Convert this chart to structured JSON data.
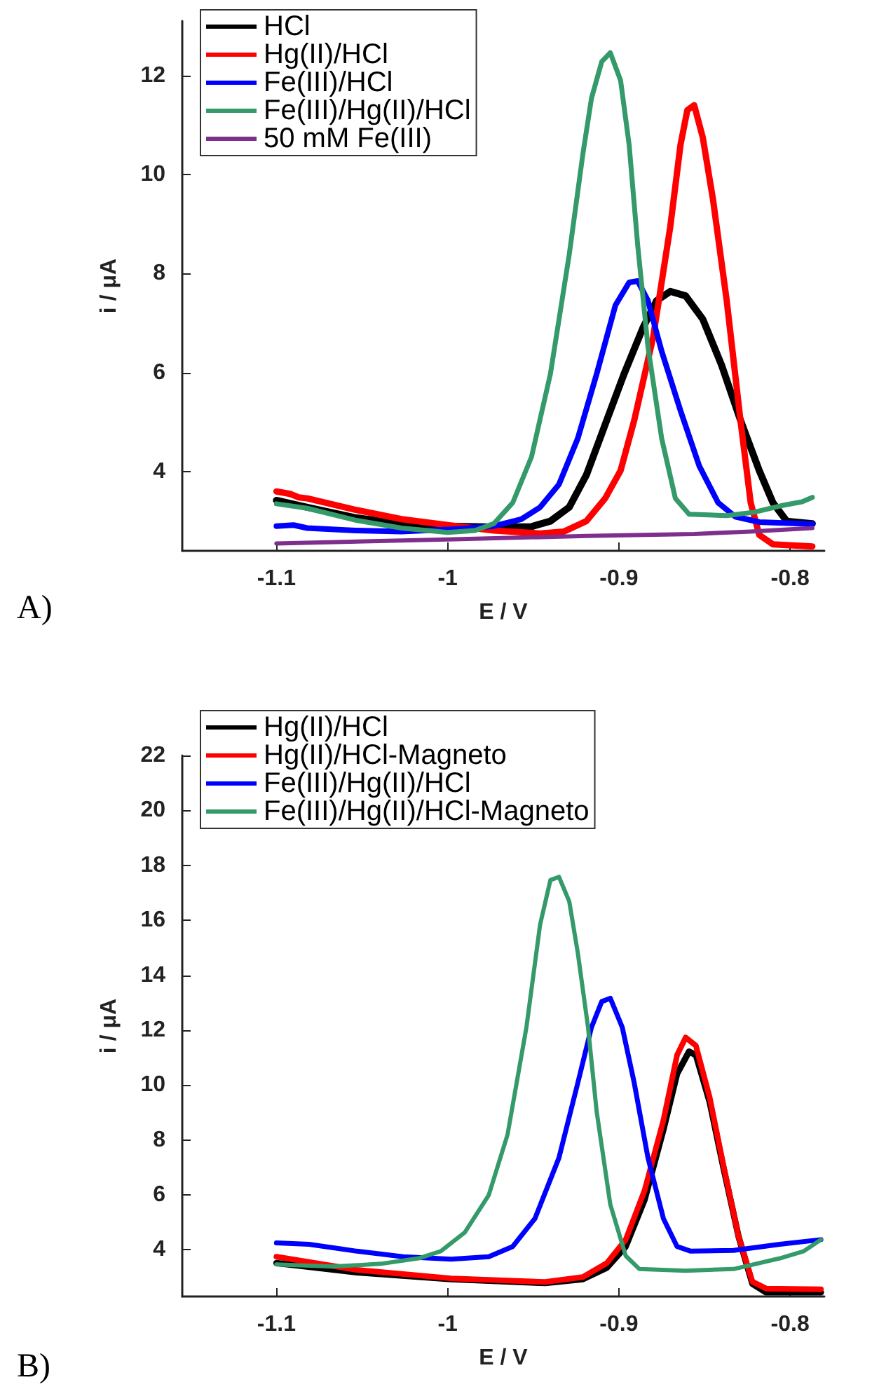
{
  "chart_data": [
    {
      "type": "line",
      "xlabel": "E / V",
      "ylabel": "i / μA",
      "annotations": [
        "A)"
      ],
      "xlim": [
        -1.155,
        -0.78
      ],
      "xticks": [
        -1.1,
        -1,
        -0.9,
        -0.8
      ],
      "ylim": [
        2.4,
        13.1
      ],
      "yticks": [
        4,
        6,
        8,
        10,
        12
      ],
      "grid": false,
      "legend": "top left",
      "marker": "none",
      "line_style": "solid",
      "series": [
        {
          "name": "HCl",
          "color": "#000000",
          "x": [
            -1.1,
            -1.082,
            -1.054,
            -1.027,
            -1.0,
            -0.973,
            -0.951,
            -0.94,
            -0.929,
            -0.919,
            -0.908,
            -0.897,
            -0.886,
            -0.878,
            -0.87,
            -0.861,
            -0.851,
            -0.84,
            -0.829,
            -0.818,
            -0.81,
            -0.802,
            -0.787
          ],
          "values": [
            3.42,
            3.28,
            3.07,
            2.95,
            2.9,
            2.88,
            2.89,
            3.0,
            3.28,
            3.93,
            4.95,
            5.97,
            6.9,
            7.45,
            7.64,
            7.55,
            7.08,
            6.15,
            5.04,
            4.02,
            3.37,
            3.0,
            2.95
          ]
        },
        {
          "name": "Hg(II)/HCl",
          "color": "#ff0000",
          "x": [
            -1.1,
            -1.092,
            -1.087,
            -1.082,
            -1.054,
            -1.027,
            -1.0,
            -0.973,
            -0.946,
            -0.932,
            -0.919,
            -0.908,
            -0.899,
            -0.891,
            -0.88,
            -0.87,
            -0.864,
            -0.86,
            -0.856,
            -0.851,
            -0.845,
            -0.837,
            -0.829,
            -0.823,
            -0.818,
            -0.81,
            -0.787
          ],
          "values": [
            3.6,
            3.55,
            3.48,
            3.46,
            3.23,
            3.04,
            2.92,
            2.81,
            2.75,
            2.79,
            3.0,
            3.46,
            4.02,
            5.04,
            6.71,
            8.94,
            10.6,
            11.3,
            11.4,
            10.75,
            9.49,
            7.45,
            5.04,
            3.37,
            2.72,
            2.53,
            2.49
          ]
        },
        {
          "name": "Fe(III)/HCl",
          "color": "#0000ff",
          "x": [
            -1.1,
            -1.09,
            -1.082,
            -1.054,
            -1.027,
            -1.0,
            -0.973,
            -0.957,
            -0.946,
            -0.935,
            -0.924,
            -0.913,
            -0.902,
            -0.894,
            -0.889,
            -0.883,
            -0.875,
            -0.864,
            -0.853,
            -0.842,
            -0.832,
            -0.818,
            -0.787
          ],
          "values": [
            2.9,
            2.92,
            2.86,
            2.81,
            2.79,
            2.83,
            2.9,
            3.04,
            3.28,
            3.74,
            4.67,
            5.97,
            7.36,
            7.82,
            7.85,
            7.45,
            6.43,
            5.23,
            4.11,
            3.37,
            3.09,
            2.98,
            2.94
          ]
        },
        {
          "name": "Fe(III)/Hg(II)/HCl",
          "color": "#349a6a",
          "x": [
            -1.1,
            -1.082,
            -1.054,
            -1.027,
            -1.0,
            -0.984,
            -0.973,
            -0.962,
            -0.951,
            -0.94,
            -0.929,
            -0.921,
            -0.916,
            -0.91,
            -0.905,
            -0.899,
            -0.894,
            -0.889,
            -0.883,
            -0.875,
            -0.867,
            -0.859,
            -0.837,
            -0.821,
            -0.804,
            -0.793,
            -0.787
          ],
          "values": [
            3.35,
            3.26,
            3.02,
            2.86,
            2.77,
            2.81,
            2.95,
            3.37,
            4.3,
            5.97,
            8.38,
            10.42,
            11.54,
            12.28,
            12.46,
            11.9,
            10.6,
            8.57,
            6.52,
            4.67,
            3.46,
            3.14,
            3.11,
            3.18,
            3.32,
            3.39,
            3.48
          ]
        },
        {
          "name": "50 mM Fe(III)",
          "color": "#7e2f8e",
          "x": [
            -1.1,
            -1.0,
            -0.919,
            -0.856,
            -0.823,
            -0.787
          ],
          "values": [
            2.55,
            2.63,
            2.7,
            2.74,
            2.79,
            2.86
          ]
        }
      ]
    },
    {
      "type": "line",
      "xlabel": "E / V",
      "ylabel": "i / μA",
      "annotations": [
        "B)"
      ],
      "xlim": [
        -1.155,
        -0.78
      ],
      "xticks": [
        -1.1,
        -1,
        -0.9,
        -0.8
      ],
      "ylim": [
        2.3,
        22
      ],
      "yticks": [
        4,
        6,
        8,
        10,
        12,
        14,
        16,
        18,
        20,
        22
      ],
      "grid": false,
      "legend": "top left",
      "marker": "none",
      "line_style": "solid",
      "series": [
        {
          "name": "Hg(II)/HCl",
          "color": "#000000",
          "x": [
            -1.1,
            -1.053,
            -0.998,
            -0.943,
            -0.921,
            -0.907,
            -0.896,
            -0.885,
            -0.874,
            -0.866,
            -0.859,
            -0.855,
            -0.847,
            -0.839,
            -0.83,
            -0.822,
            -0.814,
            -0.782
          ],
          "values": [
            3.52,
            3.18,
            2.93,
            2.79,
            2.93,
            3.35,
            4.12,
            5.82,
            8.37,
            10.41,
            11.22,
            11.09,
            9.39,
            7.01,
            4.46,
            2.76,
            2.45,
            2.45
          ]
        },
        {
          "name": "Hg(II)/HCl-Magneto",
          "color": "#ff0000",
          "x": [
            -1.1,
            -1.053,
            -0.998,
            -0.943,
            -0.921,
            -0.907,
            -0.896,
            -0.885,
            -0.874,
            -0.866,
            -0.861,
            -0.855,
            -0.847,
            -0.839,
            -0.83,
            -0.822,
            -0.814,
            -0.782
          ],
          "values": [
            3.75,
            3.27,
            2.96,
            2.83,
            3.01,
            3.52,
            4.37,
            6.16,
            8.71,
            11.09,
            11.73,
            11.43,
            9.56,
            7.09,
            4.46,
            2.84,
            2.59,
            2.56
          ]
        },
        {
          "name": "Fe(III)/Hg(II)/HCl",
          "color": "#0000ff",
          "x": [
            -1.1,
            -1.081,
            -1.053,
            -1.026,
            -0.998,
            -0.976,
            -0.962,
            -0.949,
            -0.935,
            -0.924,
            -0.916,
            -0.91,
            -0.905,
            -0.898,
            -0.891,
            -0.883,
            -0.874,
            -0.866,
            -0.858,
            -0.833,
            -0.806,
            -0.782
          ],
          "values": [
            4.25,
            4.2,
            3.95,
            3.75,
            3.66,
            3.75,
            4.12,
            5.14,
            7.35,
            10.07,
            12.1,
            13.04,
            13.16,
            12.1,
            10.07,
            7.35,
            5.14,
            4.12,
            3.95,
            3.98,
            4.2,
            4.37
          ]
        },
        {
          "name": "Fe(III)/Hg(II)/HCl-Magneto",
          "color": "#349a6a",
          "x": [
            -1.1,
            -1.067,
            -1.039,
            -1.017,
            -1.004,
            -0.99,
            -0.976,
            -0.965,
            -0.954,
            -0.946,
            -0.94,
            -0.935,
            -0.929,
            -0.924,
            -0.918,
            -0.913,
            -0.905,
            -0.896,
            -0.888,
            -0.861,
            -0.833,
            -0.806,
            -0.792,
            -0.782
          ],
          "values": [
            3.47,
            3.39,
            3.49,
            3.69,
            3.95,
            4.63,
            5.99,
            8.2,
            12.1,
            15.84,
            17.46,
            17.58,
            16.69,
            14.82,
            12.1,
            9.05,
            5.65,
            3.78,
            3.3,
            3.24,
            3.3,
            3.69,
            3.95,
            4.37
          ]
        }
      ]
    }
  ]
}
